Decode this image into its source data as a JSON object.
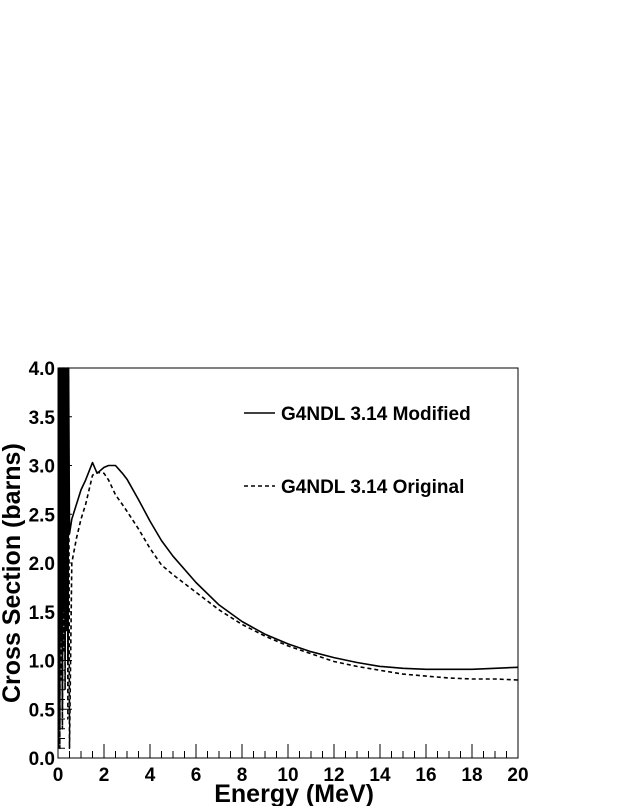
{
  "chart_data": {
    "type": "line",
    "xlabel": "Energy (MeV)",
    "ylabel": "Cross Section (barns)",
    "xlim": [
      0,
      20
    ],
    "ylim": [
      0,
      4
    ],
    "x_ticks": [
      "0",
      "2",
      "4",
      "6",
      "8",
      "10",
      "12",
      "14",
      "16",
      "18",
      "20"
    ],
    "y_ticks": [
      "0.0",
      "0.5",
      "1.0",
      "1.5",
      "2.0",
      "2.5",
      "3.0",
      "3.5",
      "4.0"
    ],
    "legend_position": "top-right",
    "series": [
      {
        "name": "G4NDL 3.14 Modified",
        "style": "solid",
        "color": "#000000",
        "x": [
          0.02,
          0.05,
          0.08,
          0.1,
          0.13,
          0.16,
          0.19,
          0.22,
          0.25,
          0.28,
          0.31,
          0.34,
          0.37,
          0.4,
          0.43,
          0.46,
          0.5,
          0.6,
          0.8,
          1.0,
          1.2,
          1.5,
          1.7,
          2.0,
          2.2,
          2.5,
          2.8,
          3.0,
          3.5,
          4.0,
          4.5,
          5.0,
          6.0,
          7.0,
          8.0,
          9.0,
          10.0,
          11.0,
          12.0,
          13.0,
          14.0,
          15.0,
          16.0,
          17.0,
          18.0,
          19.0,
          20.0
        ],
        "y": [
          0.1,
          4.0,
          0.3,
          4.0,
          1.2,
          4.0,
          0.5,
          4.0,
          1.5,
          4.0,
          1.0,
          4.0,
          1.8,
          4.0,
          1.0,
          4.0,
          2.3,
          2.45,
          2.6,
          2.75,
          2.85,
          3.03,
          2.92,
          2.98,
          3.0,
          3.0,
          2.92,
          2.86,
          2.65,
          2.43,
          2.23,
          2.07,
          1.8,
          1.57,
          1.4,
          1.27,
          1.17,
          1.09,
          1.03,
          0.98,
          0.94,
          0.92,
          0.91,
          0.91,
          0.91,
          0.92,
          0.93
        ]
      },
      {
        "name": "G4NDL 3.14 Original",
        "style": "dashed",
        "color": "#000000",
        "x": [
          0.02,
          0.05,
          0.08,
          0.1,
          0.13,
          0.16,
          0.19,
          0.22,
          0.25,
          0.28,
          0.31,
          0.34,
          0.37,
          0.4,
          0.43,
          0.46,
          0.5,
          0.6,
          0.8,
          1.0,
          1.2,
          1.5,
          1.7,
          2.0,
          2.2,
          2.5,
          2.8,
          3.0,
          3.5,
          4.0,
          4.5,
          5.0,
          6.0,
          7.0,
          8.0,
          9.0,
          10.0,
          11.0,
          12.0,
          13.0,
          14.0,
          15.0,
          16.0,
          17.0,
          18.0,
          19.0,
          20.0
        ],
        "y": [
          0.2,
          3.9,
          0.1,
          4.0,
          0.8,
          4.0,
          0.3,
          4.0,
          1.1,
          3.9,
          0.7,
          4.0,
          1.3,
          4.0,
          0.4,
          3.9,
          0.1,
          2.0,
          2.25,
          2.45,
          2.6,
          2.9,
          2.93,
          2.92,
          2.85,
          2.7,
          2.6,
          2.53,
          2.35,
          2.15,
          1.98,
          1.88,
          1.7,
          1.52,
          1.37,
          1.25,
          1.15,
          1.07,
          0.99,
          0.94,
          0.9,
          0.86,
          0.84,
          0.82,
          0.81,
          0.81,
          0.8
        ]
      }
    ]
  }
}
